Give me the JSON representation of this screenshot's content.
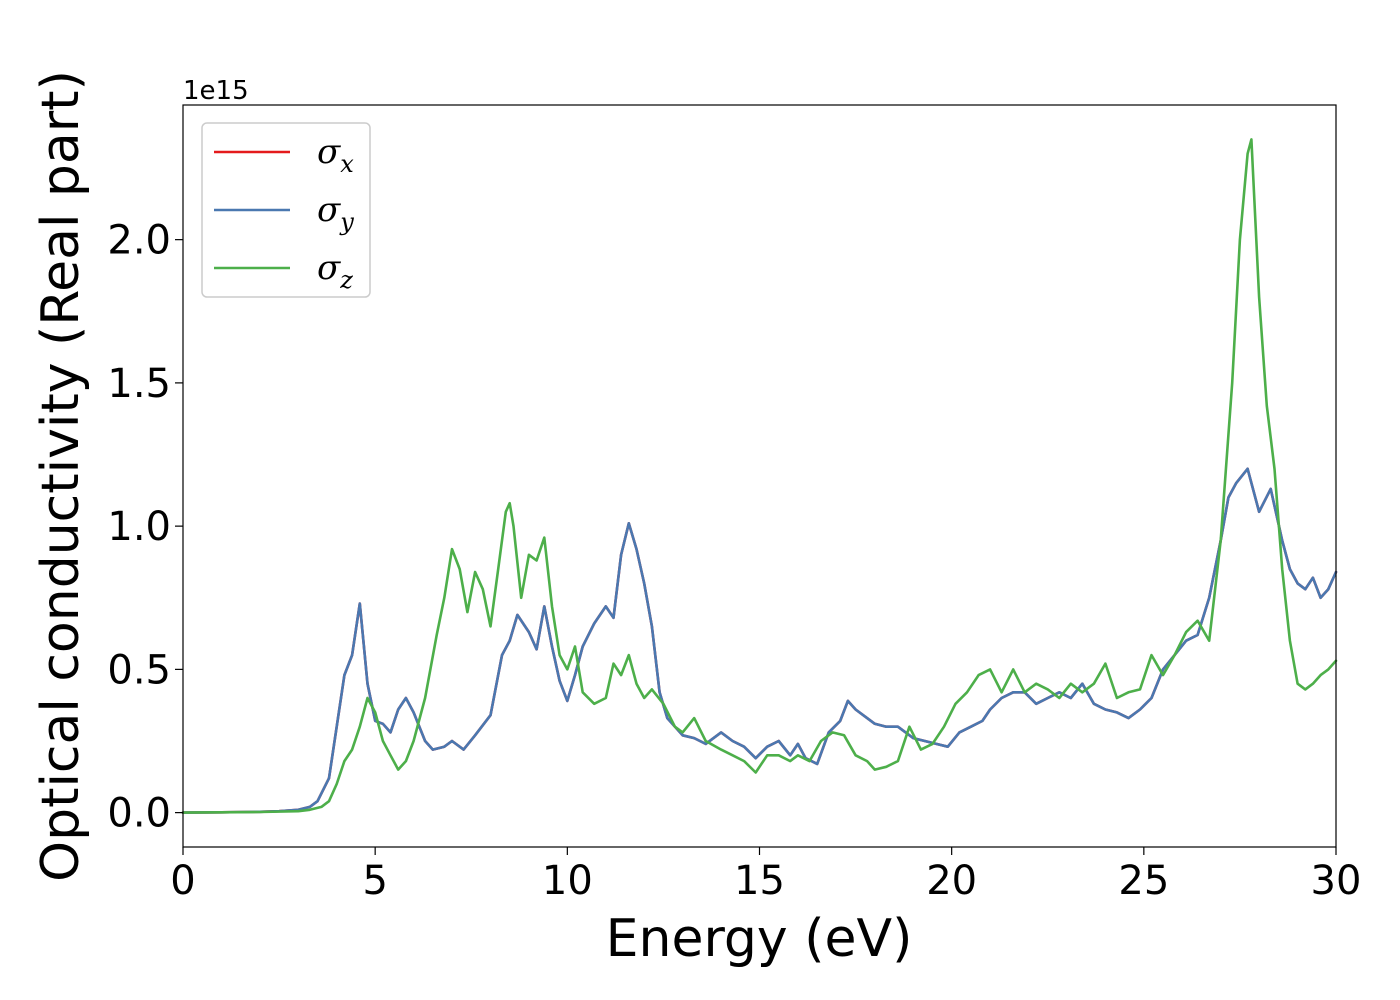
{
  "chart_data": {
    "type": "line",
    "xlabel": "Energy (eV)",
    "ylabel": "Optical conductivity (Real part)",
    "y_offset_text": "1e15",
    "xlim": [
      0,
      30
    ],
    "ylim": [
      -0.12,
      2.47
    ],
    "x_ticks": [
      0,
      5,
      10,
      15,
      20,
      25,
      30
    ],
    "x_tick_labels": [
      "0",
      "5",
      "10",
      "15",
      "20",
      "25",
      "30"
    ],
    "y_ticks": [
      0.0,
      0.5,
      1.0,
      1.5,
      2.0
    ],
    "y_tick_labels": [
      "0.0",
      "0.5",
      "1.0",
      "1.5",
      "2.0"
    ],
    "grid": false,
    "legend_position": "top-left",
    "series": [
      {
        "name": "σx",
        "legend_main": "σ",
        "legend_sub": "x",
        "color": "#e41a1c",
        "x": [
          0,
          1,
          2,
          2.5,
          3,
          3.3,
          3.5,
          3.8,
          4,
          4.2,
          4.4,
          4.6,
          4.8,
          5,
          5.2,
          5.4,
          5.6,
          5.8,
          6,
          6.3,
          6.5,
          6.8,
          7,
          7.3,
          7.6,
          8,
          8.3,
          8.5,
          8.7,
          9,
          9.2,
          9.4,
          9.6,
          9.8,
          10,
          10.2,
          10.4,
          10.7,
          10.9,
          11,
          11.2,
          11.4,
          11.6,
          11.8,
          12,
          12.2,
          12.4,
          12.6,
          12.8,
          13,
          13.3,
          13.6,
          14,
          14.3,
          14.6,
          14.9,
          15.2,
          15.5,
          15.8,
          16,
          16.2,
          16.5,
          16.8,
          17.1,
          17.3,
          17.5,
          17.8,
          18,
          18.3,
          18.6,
          19,
          19.3,
          19.6,
          19.9,
          20.2,
          20.5,
          20.8,
          21,
          21.3,
          21.6,
          21.9,
          22.2,
          22.5,
          22.8,
          23.1,
          23.4,
          23.7,
          24,
          24.3,
          24.6,
          24.9,
          25.2,
          25.5,
          25.8,
          26.1,
          26.4,
          26.7,
          27,
          27.2,
          27.4,
          27.7,
          28,
          28.3,
          28.6,
          28.8,
          29,
          29.2,
          29.4,
          29.6,
          29.8,
          30
        ],
        "y": [
          0,
          0.001,
          0.003,
          0.005,
          0.01,
          0.02,
          0.04,
          0.12,
          0.3,
          0.48,
          0.55,
          0.73,
          0.45,
          0.32,
          0.31,
          0.28,
          0.36,
          0.4,
          0.35,
          0.25,
          0.22,
          0.23,
          0.25,
          0.22,
          0.27,
          0.34,
          0.55,
          0.6,
          0.69,
          0.63,
          0.57,
          0.72,
          0.58,
          0.46,
          0.39,
          0.48,
          0.58,
          0.66,
          0.7,
          0.72,
          0.68,
          0.9,
          1.01,
          0.92,
          0.8,
          0.65,
          0.42,
          0.33,
          0.3,
          0.27,
          0.26,
          0.24,
          0.28,
          0.25,
          0.23,
          0.19,
          0.23,
          0.25,
          0.2,
          0.24,
          0.19,
          0.17,
          0.28,
          0.32,
          0.39,
          0.36,
          0.33,
          0.31,
          0.3,
          0.3,
          0.26,
          0.25,
          0.24,
          0.23,
          0.28,
          0.3,
          0.32,
          0.36,
          0.4,
          0.42,
          0.42,
          0.38,
          0.4,
          0.42,
          0.4,
          0.45,
          0.38,
          0.36,
          0.35,
          0.33,
          0.36,
          0.4,
          0.5,
          0.55,
          0.6,
          0.62,
          0.75,
          0.95,
          1.1,
          1.15,
          1.2,
          1.05,
          1.13,
          0.95,
          0.85,
          0.8,
          0.78,
          0.82,
          0.75,
          0.78,
          0.84
        ]
      },
      {
        "name": "σy",
        "legend_main": "σ",
        "legend_sub": "y",
        "color": "#4a78b0",
        "x": [
          0,
          1,
          2,
          2.5,
          3,
          3.3,
          3.5,
          3.8,
          4,
          4.2,
          4.4,
          4.6,
          4.8,
          5,
          5.2,
          5.4,
          5.6,
          5.8,
          6,
          6.3,
          6.5,
          6.8,
          7,
          7.3,
          7.6,
          8,
          8.3,
          8.5,
          8.7,
          9,
          9.2,
          9.4,
          9.6,
          9.8,
          10,
          10.2,
          10.4,
          10.7,
          10.9,
          11,
          11.2,
          11.4,
          11.6,
          11.8,
          12,
          12.2,
          12.4,
          12.6,
          12.8,
          13,
          13.3,
          13.6,
          14,
          14.3,
          14.6,
          14.9,
          15.2,
          15.5,
          15.8,
          16,
          16.2,
          16.5,
          16.8,
          17.1,
          17.3,
          17.5,
          17.8,
          18,
          18.3,
          18.6,
          19,
          19.3,
          19.6,
          19.9,
          20.2,
          20.5,
          20.8,
          21,
          21.3,
          21.6,
          21.9,
          22.2,
          22.5,
          22.8,
          23.1,
          23.4,
          23.7,
          24,
          24.3,
          24.6,
          24.9,
          25.2,
          25.5,
          25.8,
          26.1,
          26.4,
          26.7,
          27,
          27.2,
          27.4,
          27.7,
          28,
          28.3,
          28.6,
          28.8,
          29,
          29.2,
          29.4,
          29.6,
          29.8,
          30
        ],
        "y": [
          0,
          0.001,
          0.003,
          0.005,
          0.01,
          0.02,
          0.04,
          0.12,
          0.3,
          0.48,
          0.55,
          0.73,
          0.45,
          0.32,
          0.31,
          0.28,
          0.36,
          0.4,
          0.35,
          0.25,
          0.22,
          0.23,
          0.25,
          0.22,
          0.27,
          0.34,
          0.55,
          0.6,
          0.69,
          0.63,
          0.57,
          0.72,
          0.58,
          0.46,
          0.39,
          0.48,
          0.58,
          0.66,
          0.7,
          0.72,
          0.68,
          0.9,
          1.01,
          0.92,
          0.8,
          0.65,
          0.42,
          0.33,
          0.3,
          0.27,
          0.26,
          0.24,
          0.28,
          0.25,
          0.23,
          0.19,
          0.23,
          0.25,
          0.2,
          0.24,
          0.19,
          0.17,
          0.28,
          0.32,
          0.39,
          0.36,
          0.33,
          0.31,
          0.3,
          0.3,
          0.26,
          0.25,
          0.24,
          0.23,
          0.28,
          0.3,
          0.32,
          0.36,
          0.4,
          0.42,
          0.42,
          0.38,
          0.4,
          0.42,
          0.4,
          0.45,
          0.38,
          0.36,
          0.35,
          0.33,
          0.36,
          0.4,
          0.5,
          0.55,
          0.6,
          0.62,
          0.75,
          0.95,
          1.1,
          1.15,
          1.2,
          1.05,
          1.13,
          0.95,
          0.85,
          0.8,
          0.78,
          0.82,
          0.75,
          0.78,
          0.84
        ]
      },
      {
        "name": "σz",
        "legend_main": "σ",
        "legend_sub": "z",
        "color": "#4daf4a",
        "x": [
          0,
          1,
          2,
          3,
          3.3,
          3.6,
          3.8,
          4,
          4.2,
          4.4,
          4.6,
          4.8,
          5,
          5.2,
          5.4,
          5.6,
          5.8,
          6,
          6.3,
          6.6,
          6.8,
          7,
          7.2,
          7.4,
          7.6,
          7.8,
          8,
          8.2,
          8.4,
          8.5,
          8.6,
          8.8,
          9,
          9.2,
          9.4,
          9.6,
          9.8,
          10,
          10.2,
          10.4,
          10.7,
          11,
          11.2,
          11.4,
          11.6,
          11.8,
          12,
          12.2,
          12.5,
          12.8,
          13,
          13.3,
          13.6,
          14,
          14.3,
          14.6,
          14.9,
          15.2,
          15.5,
          15.8,
          16,
          16.3,
          16.6,
          16.9,
          17.2,
          17.5,
          17.8,
          18,
          18.3,
          18.6,
          18.9,
          19.2,
          19.5,
          19.8,
          20.1,
          20.4,
          20.7,
          21,
          21.3,
          21.6,
          21.9,
          22.2,
          22.5,
          22.8,
          23.1,
          23.4,
          23.7,
          24,
          24.3,
          24.6,
          24.9,
          25.2,
          25.5,
          25.8,
          26.1,
          26.4,
          26.7,
          27,
          27.3,
          27.5,
          27.7,
          27.8,
          28,
          28.2,
          28.4,
          28.6,
          28.8,
          29,
          29.2,
          29.4,
          29.6,
          29.8,
          30
        ],
        "y": [
          0,
          0.001,
          0.002,
          0.005,
          0.01,
          0.02,
          0.04,
          0.1,
          0.18,
          0.22,
          0.3,
          0.4,
          0.35,
          0.25,
          0.2,
          0.15,
          0.18,
          0.25,
          0.4,
          0.62,
          0.75,
          0.92,
          0.85,
          0.7,
          0.84,
          0.78,
          0.65,
          0.85,
          1.05,
          1.08,
          1.0,
          0.75,
          0.9,
          0.88,
          0.96,
          0.72,
          0.55,
          0.5,
          0.58,
          0.42,
          0.38,
          0.4,
          0.52,
          0.48,
          0.55,
          0.45,
          0.4,
          0.43,
          0.38,
          0.3,
          0.28,
          0.33,
          0.25,
          0.22,
          0.2,
          0.18,
          0.14,
          0.2,
          0.2,
          0.18,
          0.2,
          0.18,
          0.25,
          0.28,
          0.27,
          0.2,
          0.18,
          0.15,
          0.16,
          0.18,
          0.3,
          0.22,
          0.24,
          0.3,
          0.38,
          0.42,
          0.48,
          0.5,
          0.42,
          0.5,
          0.42,
          0.45,
          0.43,
          0.4,
          0.45,
          0.42,
          0.45,
          0.52,
          0.4,
          0.42,
          0.43,
          0.55,
          0.48,
          0.55,
          0.63,
          0.67,
          0.6,
          0.95,
          1.5,
          2.0,
          2.3,
          2.35,
          1.8,
          1.42,
          1.2,
          0.85,
          0.6,
          0.45,
          0.43,
          0.45,
          0.48,
          0.5,
          0.53
        ]
      }
    ]
  }
}
